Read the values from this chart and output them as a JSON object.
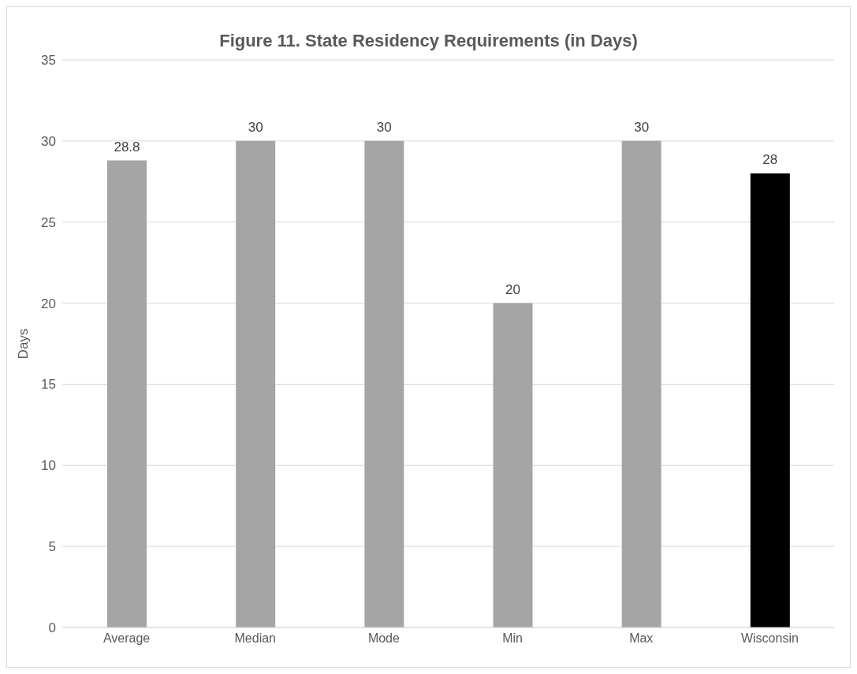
{
  "chart_data": {
    "type": "bar",
    "title": "Figure 11. State Residency Requirements (in Days)",
    "ylabel": "Days",
    "categories": [
      "Average",
      "Median",
      "Mode",
      "Min",
      "Max",
      "Wisconsin"
    ],
    "values": [
      28.8,
      30,
      30,
      20,
      30,
      28
    ],
    "colors": [
      "#a5a5a5",
      "#a5a5a5",
      "#a5a5a5",
      "#a5a5a5",
      "#a5a5a5",
      "#000000"
    ],
    "ylim": [
      0,
      35
    ],
    "yticks": [
      0,
      5,
      10,
      15,
      20,
      25,
      30,
      35
    ],
    "grid": "y",
    "data_labels": true
  }
}
